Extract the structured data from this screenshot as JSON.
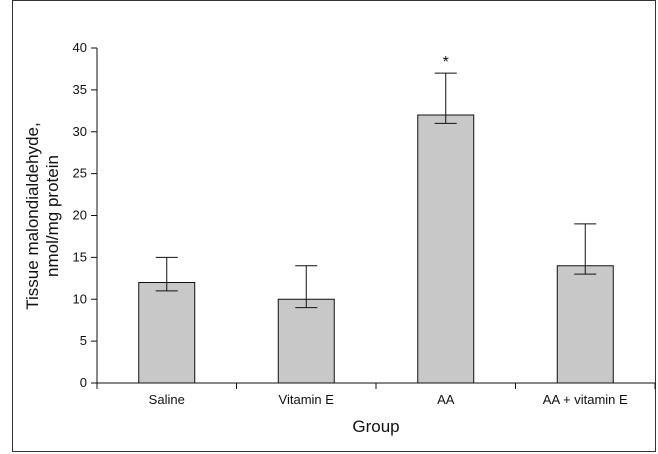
{
  "chart_data": {
    "type": "bar",
    "categories": [
      "Saline",
      "Vitamin E",
      "AA",
      "AA + vitamin E"
    ],
    "values": [
      12,
      10,
      32,
      14
    ],
    "error_upper": [
      15,
      14,
      37,
      19
    ],
    "error_lower": [
      11,
      9,
      31,
      13
    ],
    "annotations": [
      "",
      "",
      "*",
      ""
    ],
    "xlabel": "Group",
    "ylabel_line1": "Tissue malondialdehyde,",
    "ylabel_line2": "nmol/mg protein",
    "ylim": [
      0,
      40
    ],
    "yticks": [
      0,
      5,
      10,
      15,
      20,
      25,
      30,
      35,
      40
    ],
    "bar_color": "#c8c8c8",
    "grid": false
  }
}
